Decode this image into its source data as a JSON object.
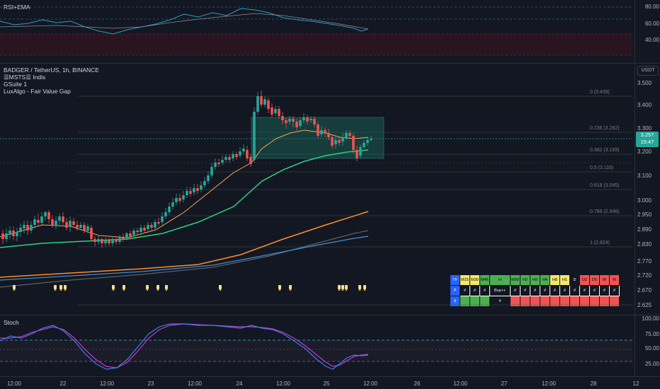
{
  "rsi_pane": {
    "title": "RSI+EMA",
    "ticks": [
      "80.00",
      "60.00",
      "40.00"
    ]
  },
  "main_pane": {
    "symbol_line": "BADGER / TetherUS, 1h, BINANCE",
    "indicators": [
      "☰MSTS☰ Indis",
      "GSuite 1",
      "LuxAlgo - Fair Value Gap"
    ],
    "currency": "USDT",
    "price_ticks": [
      "3.500",
      "3.400",
      "3.300",
      "3.200",
      "3.100",
      "3.000",
      "2.950",
      "2.890",
      "2.830",
      "2.770",
      "2.720",
      "2.670",
      "2.625"
    ],
    "current_price": "3.257",
    "countdown": "15:47",
    "fib_labels": [
      "0 (3.439)",
      "0.236 (3.282)",
      "0.382 (3.189)",
      "0.5 (3.116)",
      "0.618 (3.045)",
      "0.786 (2.946)",
      "1 (2.824)"
    ]
  },
  "signal_table": {
    "rows": [
      [
        {
          "t": "TF",
          "c": "c-b"
        },
        {
          "t": "M15",
          "c": "c-y"
        },
        {
          "t": "M30",
          "c": "c-y"
        },
        {
          "t": "M45",
          "c": "c-g"
        },
        {
          "t": "H",
          "c": "c-g",
          "w": 1
        },
        {
          "t": "M90",
          "c": "c-g"
        },
        {
          "t": "H2",
          "c": "c-g"
        },
        {
          "t": "H3",
          "c": "c-g"
        },
        {
          "t": "H4",
          "c": "c-g"
        },
        {
          "t": "H8",
          "c": "c-y"
        },
        {
          "t": "H1",
          "c": "c-y"
        },
        {
          "t": "D",
          "c": "c-n"
        },
        {
          "t": "D2",
          "c": "c-r"
        },
        {
          "t": "D5",
          "c": "c-r"
        },
        {
          "t": "W",
          "c": "c-r"
        },
        {
          "t": "M",
          "c": "c-r"
        }
      ],
      [
        {
          "t": "P",
          "c": "c-b"
        },
        {
          "t": "#",
          "c": "c-k"
        },
        {
          "t": "#",
          "c": "c-k"
        },
        {
          "t": "#",
          "c": "c-k"
        },
        {
          "t": "Buy++",
          "c": "c-k",
          "w": 1
        },
        {
          "t": "#",
          "c": "c-k"
        },
        {
          "t": "#",
          "c": "c-k"
        },
        {
          "t": "#",
          "c": "c-k"
        },
        {
          "t": "#",
          "c": "c-k"
        },
        {
          "t": "#",
          "c": "c-k"
        },
        {
          "t": "#",
          "c": "c-k"
        },
        {
          "t": "#",
          "c": "c-k"
        },
        {
          "t": "#",
          "c": "c-k"
        },
        {
          "t": "#",
          "c": "c-k"
        },
        {
          "t": "#",
          "c": "c-k"
        },
        {
          "t": "#",
          "c": "c-k"
        }
      ],
      [
        {
          "t": "S",
          "c": "c-b"
        },
        {
          "t": "",
          "c": "c-g"
        },
        {
          "t": "",
          "c": "c-g"
        },
        {
          "t": "",
          "c": "c-g"
        },
        {
          "t": "#",
          "c": "c-n",
          "w": 1
        },
        {
          "t": "",
          "c": "c-r"
        },
        {
          "t": "",
          "c": "c-r"
        },
        {
          "t": "",
          "c": "c-r"
        },
        {
          "t": "",
          "c": "c-r"
        },
        {
          "t": "",
          "c": "c-r"
        },
        {
          "t": "",
          "c": "c-r"
        },
        {
          "t": "",
          "c": "c-r"
        },
        {
          "t": "",
          "c": "c-r"
        },
        {
          "t": "",
          "c": "c-r"
        },
        {
          "t": "",
          "c": "c-r"
        },
        {
          "t": "",
          "c": "c-r"
        }
      ]
    ]
  },
  "stoch_pane": {
    "title": "Stoch",
    "ticks": [
      "100.00",
      "75.00",
      "50.00",
      "25.00"
    ]
  },
  "time_axis": [
    "12:00",
    "22",
    "12:00",
    "23",
    "12:00",
    "24",
    "12:00",
    "25",
    "12:00",
    "26",
    "12:00",
    "27",
    "12:00",
    "28",
    "12"
  ],
  "colors": {
    "up": "#26a69a",
    "down": "#ef5350",
    "ema_fast": "#f7a35c",
    "ema_green": "#2bd27e",
    "ema_orange": "#ff8c2b",
    "ema_blue": "#3d8fd1",
    "ema_gray": "#5d606b",
    "fvg": "#1a6b5c",
    "rsi": "#2a9dbf",
    "stoch_k": "#3f7fe0",
    "stoch_d": "#c13ad1"
  }
}
